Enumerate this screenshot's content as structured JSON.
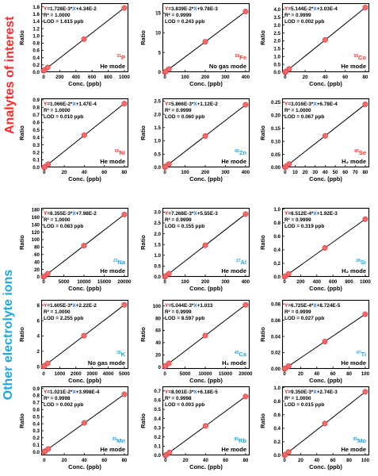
{
  "groups": [
    {
      "label": "Analytes of interest",
      "color": "#ff2a2a"
    },
    {
      "label": "Other electrolyte ions",
      "color": "#19a7e6"
    }
  ],
  "colors": {
    "y_letter": "#e01010",
    "x_letter": "#1a6fe0",
    "point": "#f46a6a",
    "point_edge": "#d93a3a",
    "element_red": "#ff3030",
    "element_blue": "#19a7e6"
  },
  "chart_data": [
    {
      "type": "scatter",
      "element": "P",
      "isotope": "31",
      "element_color": "red",
      "mode": "He mode",
      "eq": {
        "slope": "1.728E-3",
        "intercept": "+4.34E-2"
      },
      "r2": "R² = 1.0000",
      "lod": "LOD = 1.615 ppb",
      "xlabel": "Conc. (ppb)",
      "ylabel": "Ratio",
      "xlim": [
        -30,
        1050
      ],
      "ylim": [
        0,
        1.9
      ],
      "xticks": [
        "0",
        "200",
        "400",
        "600",
        "800",
        "1000"
      ],
      "yticks": [
        "0.0",
        "0.2",
        "0.4",
        "0.6",
        "0.8",
        "1.0",
        "1.2",
        "1.4",
        "1.6",
        "1.8"
      ],
      "x": [
        0,
        10,
        50,
        500,
        1000
      ],
      "y": [
        0.043,
        0.061,
        0.13,
        0.91,
        1.77
      ]
    },
    {
      "type": "scatter",
      "element": "Fe",
      "isotope": "56",
      "element_color": "red",
      "mode": "No gas mode",
      "eq": {
        "slope": "3.839E-2",
        "intercept": "+9.78E-3"
      },
      "r2": "R² = 0.9999",
      "lod": "LOD = 0.243 ppb",
      "xlabel": "Conc. (ppb)",
      "ylabel": "Ratio",
      "xlim": [
        -12,
        420
      ],
      "ylim": [
        0,
        17.5
      ],
      "xticks": [
        "0",
        "100",
        "200",
        "300",
        "400"
      ],
      "yticks": [
        "0",
        "5",
        "10",
        "15"
      ],
      "x": [
        0,
        5,
        20,
        200,
        400
      ],
      "y": [
        0.01,
        0.2,
        0.78,
        7.7,
        15.4
      ]
    },
    {
      "type": "scatter",
      "element": "Co",
      "isotope": "59",
      "element_color": "red",
      "mode": "He mode",
      "eq": {
        "slope": "5.144E-2",
        "intercept": "+3.03E-4"
      },
      "r2": "R² = 0.9999",
      "lod": "LOD = 0.002 ppb",
      "xlabel": "Conc. (ppb)",
      "ylabel": "Ratio",
      "xlim": [
        -3,
        84
      ],
      "ylim": [
        0,
        4.4
      ],
      "xticks": [
        "0",
        "20",
        "40",
        "60",
        "80"
      ],
      "yticks": [
        "0.0",
        "0.5",
        "1.0",
        "1.5",
        "2.0",
        "2.5",
        "3.0",
        "3.5",
        "4.0"
      ],
      "x": [
        0,
        1,
        4,
        40,
        80
      ],
      "y": [
        0.0003,
        0.052,
        0.21,
        2.06,
        4.12
      ]
    },
    {
      "type": "scatter",
      "element": "Ni",
      "isotope": "60",
      "element_color": "red",
      "mode": "He mode",
      "eq": {
        "slope": "1.066E-2",
        "intercept": "+1.47E-4"
      },
      "r2": "R² = 1.0000",
      "lod": "LOD = 0.010 ppb",
      "xlabel": "Conc. (ppb)",
      "ylabel": "Ratio",
      "xlim": [
        -3,
        84
      ],
      "ylim": [
        0,
        0.92
      ],
      "xticks": [
        "0",
        "20",
        "40",
        "60",
        "80"
      ],
      "yticks": [
        "0.0",
        "0.1",
        "0.2",
        "0.3",
        "0.4",
        "0.5",
        "0.6",
        "0.7",
        "0.8",
        "0.9"
      ],
      "x": [
        0,
        1,
        4,
        40,
        80
      ],
      "y": [
        0.0001,
        0.011,
        0.043,
        0.43,
        0.85
      ]
    },
    {
      "type": "scatter",
      "element": "Zn",
      "isotope": "66",
      "element_color": "blue",
      "mode": "He mode",
      "eq": {
        "slope": "5.866E-3",
        "intercept": "+1.12E-2"
      },
      "r2": "R² = 0.9999",
      "lod": "LOD = 0.060 ppb",
      "xlabel": "Conc. (ppb)",
      "ylabel": "Ratio",
      "xlim": [
        -12,
        420
      ],
      "ylim": [
        0,
        2.6
      ],
      "xticks": [
        "0",
        "100",
        "200",
        "300",
        "400"
      ],
      "yticks": [
        "0.0",
        "0.5",
        "1.0",
        "1.5",
        "2.0",
        "2.5"
      ],
      "x": [
        0,
        5,
        20,
        200,
        400
      ],
      "y": [
        0.011,
        0.04,
        0.128,
        1.18,
        2.36
      ]
    },
    {
      "type": "scatter",
      "element": "Se",
      "isotope": "80",
      "element_color": "red",
      "mode": "H₂ mode",
      "eq": {
        "slope": "3.016E-3",
        "intercept": "+6.78E-4"
      },
      "r2": "R² = 1.0000",
      "lod": "LOD = 0.067 ppb",
      "xlabel": "Conc. (ppb)",
      "ylabel": "Ratio",
      "xlim": [
        -3,
        84
      ],
      "ylim": [
        0,
        0.265
      ],
      "xticks": [
        "0",
        "10",
        "20",
        "30",
        "40",
        "50",
        "60",
        "70",
        "80"
      ],
      "yticks": [
        "0.00",
        "0.05",
        "0.10",
        "0.15",
        "0.20",
        "0.25"
      ],
      "x": [
        0,
        1,
        4,
        40,
        80
      ],
      "y": [
        0.0007,
        0.0037,
        0.013,
        0.121,
        0.242
      ]
    },
    {
      "type": "scatter",
      "element": "Na",
      "isotope": "23",
      "element_color": "blue",
      "mode": "He mode",
      "eq": {
        "slope": "8.355E-3",
        "intercept": "+7.98E-2"
      },
      "r2": "R² = 1.0000",
      "lod": "LOD = 0.083 ppb",
      "xlabel": "Conc. (ppb)",
      "ylabel": "Ratio",
      "xlim": [
        -600,
        21000
      ],
      "ylim": [
        0,
        185
      ],
      "xticks": [
        "0",
        "5000",
        "10000",
        "15000",
        "20000"
      ],
      "yticks": [
        "0",
        "20",
        "40",
        "60",
        "80",
        "100",
        "120",
        "140",
        "160",
        "180"
      ],
      "x": [
        0,
        200,
        1000,
        10000,
        20000
      ],
      "y": [
        0.08,
        1.75,
        8.4,
        83.6,
        167.2
      ]
    },
    {
      "type": "scatter",
      "element": "Al",
      "isotope": "27",
      "element_color": "blue",
      "mode": "He mode",
      "eq": {
        "slope": "7.268E-3",
        "intercept": "+5.55E-3"
      },
      "r2": "R² = 0.9999",
      "lod": "LOD = 0.155 ppb",
      "xlabel": "Conc. (ppb)",
      "ylabel": "Ratio",
      "xlim": [
        -12,
        420
      ],
      "ylim": [
        0,
        3.2
      ],
      "xticks": [
        "0",
        "100",
        "200",
        "300",
        "400"
      ],
      "yticks": [
        "0.0",
        "0.5",
        "1.0",
        "1.5",
        "2.0",
        "2.5",
        "3.0"
      ],
      "x": [
        0,
        5,
        20,
        200,
        400
      ],
      "y": [
        0.006,
        0.042,
        0.15,
        1.46,
        2.91
      ]
    },
    {
      "type": "scatter",
      "element": "Si",
      "isotope": "28",
      "element_color": "blue",
      "mode": "H₂ mode",
      "eq": {
        "slope": "8.512E-4",
        "intercept": "+1.92E-3"
      },
      "r2": "R² = 0.9999",
      "lod": "LOD = 0.319 ppb",
      "xlabel": "Conc. (ppb)",
      "ylabel": "Ratio",
      "xlim": [
        -30,
        1050
      ],
      "ylim": [
        0,
        1.02
      ],
      "xticks": [
        "0",
        "200",
        "400",
        "600",
        "800",
        "1000"
      ],
      "yticks": [
        "0.0",
        "0.2",
        "0.4",
        "0.6",
        "0.8",
        "1.0"
      ],
      "x": [
        0,
        10,
        50,
        500,
        1000
      ],
      "y": [
        0.002,
        0.0105,
        0.0445,
        0.428,
        0.853
      ]
    },
    {
      "type": "scatter",
      "element": "K",
      "isotope": "39",
      "element_color": "blue",
      "mode": "No gas mode",
      "eq": {
        "slope": "1.605E-3",
        "intercept": "+2.22E-2"
      },
      "r2": "R² = 1.0000",
      "lod": "LOD = 2.255 ppb",
      "xlabel": "Conc. (ppb)",
      "ylabel": "Ratio",
      "xlim": [
        -150,
        5250
      ],
      "ylim": [
        -0.3,
        8.7
      ],
      "xticks": [
        "0",
        "1000",
        "2000",
        "3000",
        "4000",
        "5000"
      ],
      "yticks": [
        "0",
        "2",
        "4",
        "6",
        "8"
      ],
      "x": [
        0,
        50,
        250,
        2500,
        5000
      ],
      "y": [
        0.022,
        0.1,
        0.42,
        4.03,
        8.05
      ]
    },
    {
      "type": "scatter",
      "element": "Ca",
      "isotope": "40",
      "element_color": "blue",
      "mode": "H₂ mode",
      "eq": {
        "slope": "5.044E-3",
        "intercept": "+1.033"
      },
      "r2": "R² = 0.9999",
      "lod": "LOD = 8.597 ppb",
      "xlabel": "Conc. (ppb)",
      "ylabel": "Ratio",
      "xlim": [
        -600,
        21000
      ],
      "ylim": [
        -3,
        110
      ],
      "xticks": [
        "0",
        "5000",
        "10000",
        "15000",
        "20000"
      ],
      "yticks": [
        "0",
        "20",
        "40",
        "60",
        "80",
        "100"
      ],
      "x": [
        0,
        200,
        1000,
        10000,
        20000
      ],
      "y": [
        1.03,
        2.04,
        6.1,
        51.5,
        101.9
      ]
    },
    {
      "type": "scatter",
      "element": "Ti",
      "isotope": "47",
      "element_color": "blue",
      "mode": "He mode",
      "eq": {
        "slope": "6.725E-4",
        "intercept": "+8.724E-5"
      },
      "r2": "R² = 0.9999",
      "lod": "LOD = 0.027 ppb",
      "xlabel": "Conc. (ppb)",
      "ylabel": "Ratio",
      "xlim": [
        -3,
        105
      ],
      "ylim": [
        0,
        0.085
      ],
      "xticks": [
        "0",
        "20",
        "40",
        "60",
        "80",
        "100"
      ],
      "yticks": [
        "0.00",
        "0.02",
        "0.04",
        "0.06",
        "0.08"
      ],
      "x": [
        0,
        1,
        5,
        50,
        100
      ],
      "y": [
        0.0001,
        0.00076,
        0.0034,
        0.0337,
        0.0673
      ]
    },
    {
      "type": "scatter",
      "element": "Mn",
      "isotope": "55",
      "element_color": "blue",
      "mode": "He mode",
      "eq": {
        "slope": "1.021E-2",
        "intercept": "+3.998E-4"
      },
      "r2": "R² = 0.9998",
      "lod": "LOD = 0.002 ppb",
      "xlabel": "Conc. (ppb)",
      "ylabel": "Ratio",
      "xlim": [
        -3,
        84
      ],
      "ylim": [
        -0.05,
        0.93
      ],
      "xticks": [
        "0",
        "20",
        "40",
        "60",
        "80"
      ],
      "yticks": [
        "0.0",
        "0.1",
        "0.2",
        "0.3",
        "0.4",
        "0.5",
        "0.6",
        "0.7",
        "0.8",
        "0.9"
      ],
      "x": [
        0,
        1,
        4,
        40,
        80
      ],
      "y": [
        0.0004,
        0.0106,
        0.041,
        0.41,
        0.817
      ]
    },
    {
      "type": "scatter",
      "element": "Rb",
      "isotope": "85",
      "element_color": "blue",
      "mode": "He mode",
      "eq": {
        "slope": "8.001E-3",
        "intercept": "+6.18E-5"
      },
      "r2": "R² = 0.9998",
      "lod": "LOD = 0.003 ppb",
      "xlabel": "Conc. (ppb)",
      "ylabel": "Ratio",
      "xlim": [
        -3,
        84
      ],
      "ylim": [
        0,
        0.75
      ],
      "xticks": [
        "0",
        "20",
        "40",
        "60",
        "80"
      ],
      "yticks": [
        "0.0",
        "0.1",
        "0.2",
        "0.3",
        "0.4",
        "0.5",
        "0.6",
        "0.7"
      ],
      "x": [
        0,
        1,
        4,
        40,
        80
      ],
      "y": [
        0.0001,
        0.008,
        0.032,
        0.32,
        0.64
      ]
    },
    {
      "type": "scatter",
      "element": "Mo",
      "isotope": "95",
      "element_color": "blue",
      "mode": "He mode",
      "eq": {
        "slope": "9.350E-3",
        "intercept": "+2.74E-3"
      },
      "r2": "R² = 1.0000",
      "lod": "LOD = 0.015 ppb",
      "xlabel": "Conc. (ppb)",
      "ylabel": "Ratio",
      "xlim": [
        -3,
        105
      ],
      "ylim": [
        0,
        1.02
      ],
      "xticks": [
        "0",
        "20",
        "40",
        "60",
        "80",
        "100"
      ],
      "yticks": [
        "0.0",
        "0.2",
        "0.4",
        "0.6",
        "0.8",
        "1.0"
      ],
      "x": [
        0,
        1,
        5,
        50,
        100
      ],
      "y": [
        0.0027,
        0.012,
        0.05,
        0.47,
        0.94
      ]
    }
  ]
}
